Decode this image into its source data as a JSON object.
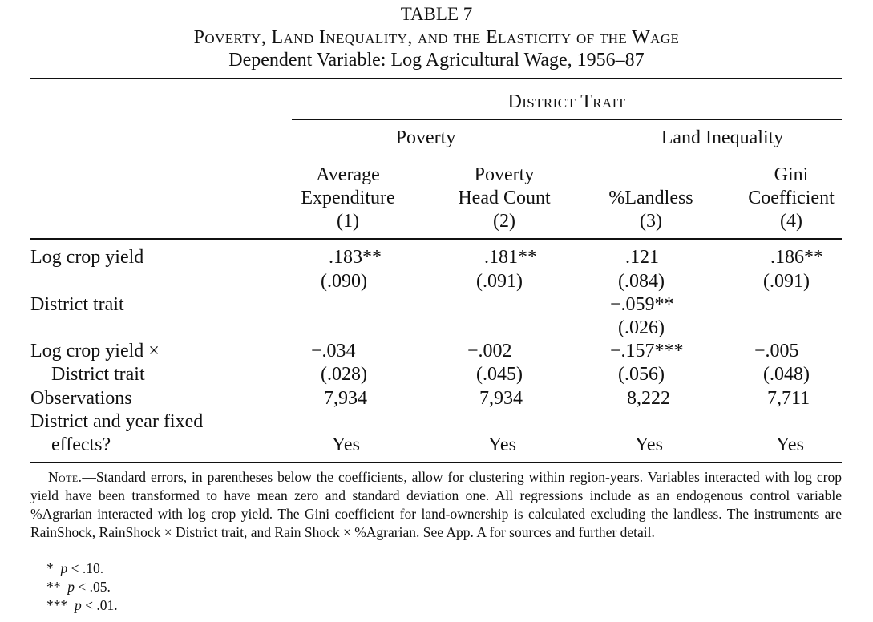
{
  "table": {
    "number": "TABLE 7",
    "title": "Poverty, Land Inequality, and the Elasticity of the Wage",
    "subtitle": "Dependent Variable: Log Agricultural Wage, 1956–87",
    "spanner": "District Trait",
    "groups": [
      "Poverty",
      "Land Inequality"
    ],
    "columns": [
      {
        "line1": "Average",
        "line2": "Expenditure",
        "num": "(1)"
      },
      {
        "line1": "Poverty",
        "line2": "Head Count",
        "num": "(2)"
      },
      {
        "line1": "",
        "line2": "%Landless",
        "num": "(3)"
      },
      {
        "line1": "Gini",
        "line2": "Coefficient",
        "num": "(4)"
      }
    ],
    "rows": {
      "log_crop_yield": {
        "label": "Log crop yield",
        "coef": [
          ".183**",
          ".181**",
          ".121",
          ".186**"
        ],
        "se": [
          "(.090)",
          "(.091)",
          "(.084)",
          "(.091)"
        ]
      },
      "district_trait": {
        "label": "District trait",
        "coef": [
          "",
          "",
          "−.059**",
          ""
        ],
        "se": [
          "",
          "",
          "(.026)",
          ""
        ]
      },
      "interaction": {
        "label1": "Log crop yield ×",
        "label2": "District trait",
        "coef": [
          "−.034",
          "−.002",
          "−.157***",
          "−.005"
        ],
        "se": [
          "(.028)",
          "(.045)",
          "(.056)",
          "(.048)"
        ]
      },
      "observations": {
        "label": "Observations",
        "values": [
          "7,934",
          "7,934",
          "8,222",
          "7,711"
        ]
      },
      "fixed_effects": {
        "label1": "District and year fixed",
        "label2": "effects?",
        "values": [
          "Yes",
          "Yes",
          "Yes",
          "Yes"
        ]
      }
    },
    "note_label": "Note.",
    "note_text": "—Standard errors, in parentheses below the coefficients, allow for clustering within region-years. Variables interacted with log crop yield have been transformed to have mean zero and standard deviation one. All regressions include as an endogenous control variable %Agrarian interacted with log crop yield. The Gini coefficient for land-ownership is calculated excluding the landless. The instruments are RainShock, RainShock × District trait, and Rain Shock × %Agrarian. See App. A for sources and further detail.",
    "footnotes": [
      {
        "stars": "*",
        "p": "p",
        "text": " < .10."
      },
      {
        "stars": "**",
        "p": "p",
        "text": " < .05."
      },
      {
        "stars": "***",
        "p": "p",
        "text": " < .01."
      }
    ]
  }
}
